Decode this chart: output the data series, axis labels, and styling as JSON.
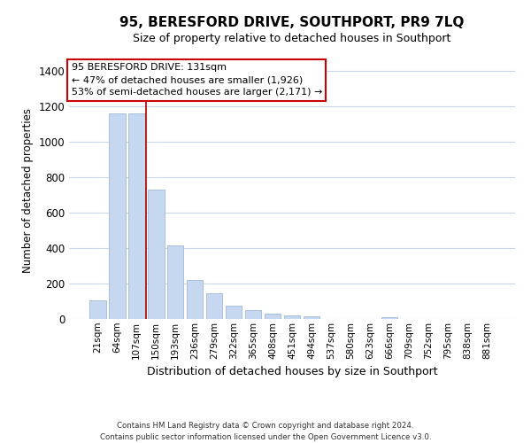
{
  "title": "95, BERESFORD DRIVE, SOUTHPORT, PR9 7LQ",
  "subtitle": "Size of property relative to detached houses in Southport",
  "xlabel": "Distribution of detached houses by size in Southport",
  "ylabel": "Number of detached properties",
  "bar_labels": [
    "21sqm",
    "64sqm",
    "107sqm",
    "150sqm",
    "193sqm",
    "236sqm",
    "279sqm",
    "322sqm",
    "365sqm",
    "408sqm",
    "451sqm",
    "494sqm",
    "537sqm",
    "580sqm",
    "623sqm",
    "666sqm",
    "709sqm",
    "752sqm",
    "795sqm",
    "838sqm",
    "881sqm"
  ],
  "bar_values": [
    107,
    1160,
    1160,
    730,
    415,
    220,
    147,
    73,
    50,
    30,
    18,
    15,
    0,
    0,
    0,
    8,
    0,
    0,
    0,
    0,
    0
  ],
  "bar_color": "#c5d8f0",
  "bar_edgecolor": "#a0b8d8",
  "annotation_line1": "95 BERESFORD DRIVE: 131sqm",
  "annotation_line2": "← 47% of detached houses are smaller (1,926)",
  "annotation_line3": "53% of semi-detached houses are larger (2,171) →",
  "annotation_box_facecolor": "#ffffff",
  "annotation_box_edgecolor": "#cc0000",
  "vline_x": 2.5,
  "vline_color": "#aa0000",
  "ylim": [
    0,
    1450
  ],
  "yticks": [
    0,
    200,
    400,
    600,
    800,
    1000,
    1200,
    1400
  ],
  "footer_line1": "Contains HM Land Registry data © Crown copyright and database right 2024.",
  "footer_line2": "Contains public sector information licensed under the Open Government Licence v3.0.",
  "background_color": "#ffffff",
  "grid_color": "#c8d8e8"
}
